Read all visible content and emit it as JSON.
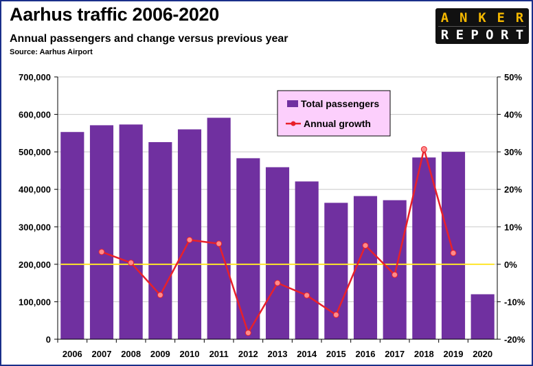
{
  "header": {
    "title": "Aarhus traffic 2006-2020",
    "subtitle": "Annual passengers and change versus previous year",
    "source": "Source: Aarhus Airport"
  },
  "logo": {
    "line1": "ANKER",
    "line2": "REPORT"
  },
  "colors": {
    "bars": "#7030a0",
    "growth_line": "#e8202a",
    "growth_marker_fill": "#ff8a8a",
    "zero_line": "#ffe629",
    "legend_bg": "#fccffc"
  },
  "chart_data": {
    "type": "bar",
    "categories": [
      "2006",
      "2007",
      "2008",
      "2009",
      "2010",
      "2011",
      "2012",
      "2013",
      "2014",
      "2015",
      "2016",
      "2017",
      "2018",
      "2019",
      "2020"
    ],
    "series": [
      {
        "name": "Total passengers",
        "type": "bar",
        "axis": "left",
        "values": [
          553000,
          571000,
          573000,
          526000,
          560000,
          591000,
          483000,
          459000,
          421000,
          364000,
          382000,
          371000,
          485000,
          500000,
          120000
        ]
      },
      {
        "name": "Annual growth",
        "type": "line",
        "axis": "right",
        "unit": "%",
        "values": [
          null,
          3.3,
          0.4,
          -8.2,
          6.5,
          5.5,
          -18.3,
          -5.0,
          -8.3,
          -13.5,
          5.0,
          -2.8,
          30.7,
          3.0,
          null
        ]
      }
    ],
    "y_left": {
      "ylim": [
        0,
        700000
      ],
      "ticks": [
        0,
        100000,
        200000,
        300000,
        400000,
        500000,
        600000,
        700000
      ],
      "tick_labels": [
        "0",
        "100,000",
        "200,000",
        "300,000",
        "400,000",
        "500,000",
        "600,000",
        "700,000"
      ]
    },
    "y_right": {
      "ylim": [
        -20,
        50
      ],
      "ticks": [
        -20,
        -10,
        0,
        10,
        20,
        30,
        40,
        50
      ],
      "tick_labels": [
        "-20%",
        "-10%",
        "0%",
        "10%",
        "20%",
        "30%",
        "40%",
        "50%"
      ]
    },
    "zero_reference_line": true,
    "grid": true,
    "legend": {
      "position": "top-center",
      "entries": [
        "Total passengers",
        "Annual growth"
      ]
    }
  }
}
